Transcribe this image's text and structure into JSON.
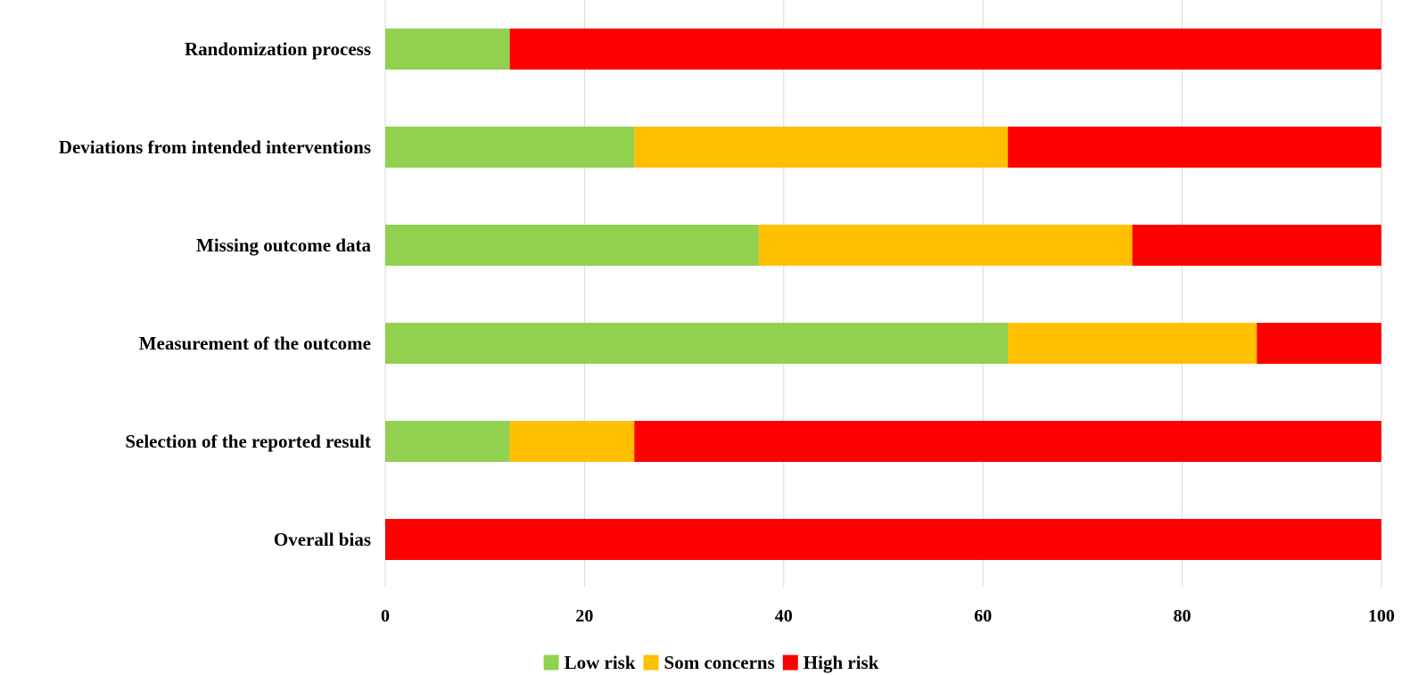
{
  "chart_data": {
    "type": "bar",
    "orientation": "horizontal",
    "stacked": true,
    "categories": [
      "Randomization process",
      "Deviations from intended interventions",
      "Missing outcome data",
      "Measurement of the outcome",
      "Selection of the reported result",
      "Overall bias"
    ],
    "series": [
      {
        "name": "Low risk",
        "color": "#92D050",
        "values": [
          12.5,
          25,
          37.5,
          62.5,
          12.5,
          0
        ]
      },
      {
        "name": "Som concerns",
        "color": "#FFC000",
        "values": [
          0,
          37.5,
          37.5,
          25,
          12.5,
          0
        ]
      },
      {
        "name": "High risk",
        "color": "#FF0000",
        "values": [
          87.5,
          37.5,
          25,
          12.5,
          75,
          100
        ]
      }
    ],
    "xlim": [
      0,
      100
    ],
    "xticks": [
      "0",
      "20",
      "40",
      "60",
      "80",
      "100"
    ],
    "grid": true,
    "legend_position": "bottom"
  }
}
